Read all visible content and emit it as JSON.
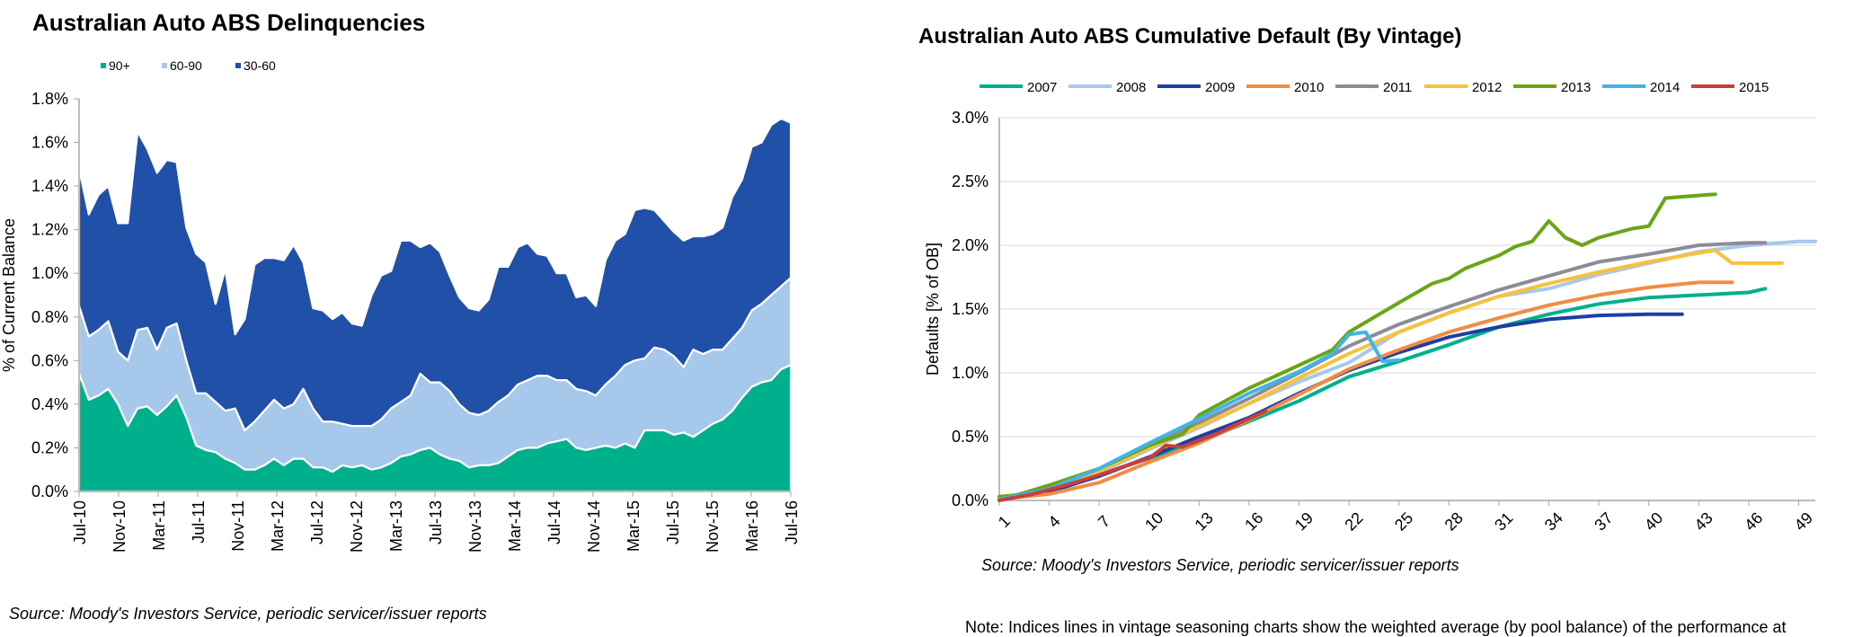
{
  "left_chart": {
    "source": "Source: Moody's Investors Service, periodic servicer/issuer reports"
  },
  "right_chart": {
    "source": "Source: Moody's Investors Service, periodic servicer/issuer reports"
  },
  "note": "Note:  Indices lines in vintage seasoning charts show the weighted average (by pool balance) of the performance at",
  "chart_data": [
    {
      "type": "area",
      "stacked": true,
      "title": "Australian Auto ABS Delinquencies",
      "xlabel": "",
      "ylabel": "% of Current Balance",
      "ylim": [
        0,
        1.8
      ],
      "yticks": [
        "0.0%",
        "0.2%",
        "0.4%",
        "0.6%",
        "0.8%",
        "1.0%",
        "1.2%",
        "1.4%",
        "1.6%",
        "1.8%"
      ],
      "xticks": [
        "Jul-10",
        "Nov-10",
        "Mar-11",
        "Jul-11",
        "Nov-11",
        "Mar-12",
        "Jul-12",
        "Nov-12",
        "Mar-13",
        "Jul-13",
        "Nov-13",
        "Mar-14",
        "Jul-14",
        "Nov-14",
        "Mar-15",
        "Jul-15",
        "Nov-15",
        "Mar-16",
        "Jul-16"
      ],
      "x_start": "Jul-10",
      "x_end": "Jul-16",
      "grid": false,
      "legend_position": "top-left",
      "series": [
        {
          "name": "90+",
          "color": "#00b08c",
          "values": [
            0.54,
            0.42,
            0.44,
            0.47,
            0.4,
            0.3,
            0.38,
            0.39,
            0.35,
            0.39,
            0.44,
            0.34,
            0.21,
            0.19,
            0.18,
            0.15,
            0.13,
            0.1,
            0.1,
            0.12,
            0.15,
            0.12,
            0.15,
            0.15,
            0.11,
            0.11,
            0.09,
            0.12,
            0.11,
            0.12,
            0.1,
            0.11,
            0.13,
            0.16,
            0.17,
            0.19,
            0.2,
            0.17,
            0.15,
            0.14,
            0.11,
            0.12,
            0.12,
            0.13,
            0.16,
            0.19,
            0.2,
            0.2,
            0.22,
            0.23,
            0.24,
            0.2,
            0.19,
            0.2,
            0.21,
            0.2,
            0.22,
            0.2,
            0.28,
            0.28,
            0.28,
            0.26,
            0.27,
            0.25,
            0.28,
            0.31,
            0.33,
            0.37,
            0.43,
            0.48,
            0.5,
            0.51,
            0.56,
            0.58
          ]
        },
        {
          "name": "60-90",
          "color": "#a6c8ea",
          "values": [
            0.31,
            0.29,
            0.3,
            0.31,
            0.24,
            0.3,
            0.36,
            0.36,
            0.3,
            0.36,
            0.33,
            0.26,
            0.24,
            0.26,
            0.23,
            0.22,
            0.25,
            0.18,
            0.22,
            0.25,
            0.27,
            0.26,
            0.25,
            0.32,
            0.27,
            0.21,
            0.23,
            0.19,
            0.19,
            0.18,
            0.2,
            0.22,
            0.25,
            0.25,
            0.27,
            0.35,
            0.3,
            0.33,
            0.31,
            0.26,
            0.25,
            0.23,
            0.25,
            0.28,
            0.28,
            0.3,
            0.31,
            0.33,
            0.31,
            0.28,
            0.27,
            0.27,
            0.27,
            0.24,
            0.28,
            0.33,
            0.36,
            0.4,
            0.33,
            0.38,
            0.37,
            0.36,
            0.3,
            0.4,
            0.35,
            0.34,
            0.32,
            0.33,
            0.32,
            0.35,
            0.36,
            0.39,
            0.38,
            0.4
          ]
        },
        {
          "name": "30-60",
          "color": "#2050a8",
          "values": [
            0.63,
            0.56,
            0.62,
            0.62,
            0.59,
            0.63,
            0.91,
            0.82,
            0.81,
            0.77,
            0.74,
            0.61,
            0.64,
            0.6,
            0.45,
            0.65,
            0.34,
            0.51,
            0.72,
            0.7,
            0.65,
            0.68,
            0.73,
            0.58,
            0.46,
            0.51,
            0.47,
            0.51,
            0.47,
            0.46,
            0.6,
            0.66,
            0.63,
            0.74,
            0.71,
            0.58,
            0.64,
            0.6,
            0.53,
            0.49,
            0.48,
            0.48,
            0.51,
            0.62,
            0.59,
            0.63,
            0.63,
            0.56,
            0.55,
            0.49,
            0.49,
            0.42,
            0.44,
            0.41,
            0.57,
            0.62,
            0.6,
            0.69,
            0.69,
            0.63,
            0.59,
            0.57,
            0.58,
            0.52,
            0.54,
            0.53,
            0.56,
            0.65,
            0.68,
            0.75,
            0.74,
            0.78,
            0.77,
            0.71
          ]
        }
      ]
    },
    {
      "type": "line",
      "title": "Australian Auto ABS Cumulative Default (By Vintage)",
      "xlabel": "",
      "ylabel": "Defaults [% of OB]",
      "xlim": [
        1,
        50
      ],
      "ylim": [
        0,
        3.0
      ],
      "xticks": [
        1,
        4,
        7,
        10,
        13,
        16,
        19,
        22,
        25,
        28,
        31,
        34,
        37,
        40,
        43,
        46,
        49
      ],
      "yticks": [
        "0.0%",
        "0.5%",
        "1.0%",
        "1.5%",
        "2.0%",
        "2.5%",
        "3.0%"
      ],
      "grid": true,
      "legend_position": "top",
      "series": [
        {
          "name": "2007",
          "color": "#00b08c",
          "points": [
            [
              1,
              0.02
            ],
            [
              4,
              0.06
            ],
            [
              7,
              0.2
            ],
            [
              10,
              0.33
            ],
            [
              13,
              0.46
            ],
            [
              16,
              0.62
            ],
            [
              19,
              0.78
            ],
            [
              22,
              0.97
            ],
            [
              25,
              1.09
            ],
            [
              28,
              1.22
            ],
            [
              31,
              1.36
            ],
            [
              34,
              1.46
            ],
            [
              37,
              1.54
            ],
            [
              40,
              1.59
            ],
            [
              43,
              1.61
            ],
            [
              46,
              1.63
            ],
            [
              47,
              1.66
            ]
          ]
        },
        {
          "name": "2008",
          "color": "#a6c8ea",
          "points": [
            [
              1,
              0.02
            ],
            [
              4,
              0.08
            ],
            [
              7,
              0.22
            ],
            [
              10,
              0.4
            ],
            [
              13,
              0.57
            ],
            [
              16,
              0.76
            ],
            [
              19,
              0.93
            ],
            [
              22,
              1.08
            ],
            [
              25,
              1.32
            ],
            [
              28,
              1.47
            ],
            [
              31,
              1.6
            ],
            [
              34,
              1.66
            ],
            [
              37,
              1.77
            ],
            [
              40,
              1.86
            ],
            [
              43,
              1.95
            ],
            [
              46,
              2.0
            ],
            [
              49,
              2.03
            ],
            [
              50,
              2.03
            ]
          ]
        },
        {
          "name": "2009",
          "color": "#1f3ea5",
          "points": [
            [
              1,
              0.02
            ],
            [
              4,
              0.07
            ],
            [
              7,
              0.19
            ],
            [
              10,
              0.34
            ],
            [
              13,
              0.5
            ],
            [
              16,
              0.65
            ],
            [
              19,
              0.84
            ],
            [
              22,
              1.02
            ],
            [
              25,
              1.16
            ],
            [
              28,
              1.28
            ],
            [
              31,
              1.36
            ],
            [
              34,
              1.42
            ],
            [
              37,
              1.45
            ],
            [
              40,
              1.46
            ],
            [
              42,
              1.46
            ]
          ]
        },
        {
          "name": "2010",
          "color": "#f08c44",
          "points": [
            [
              1,
              0.01
            ],
            [
              4,
              0.05
            ],
            [
              7,
              0.14
            ],
            [
              10,
              0.3
            ],
            [
              13,
              0.45
            ],
            [
              16,
              0.63
            ],
            [
              19,
              0.83
            ],
            [
              22,
              1.03
            ],
            [
              25,
              1.18
            ],
            [
              28,
              1.32
            ],
            [
              31,
              1.43
            ],
            [
              34,
              1.53
            ],
            [
              37,
              1.61
            ],
            [
              40,
              1.67
            ],
            [
              43,
              1.71
            ],
            [
              45,
              1.71
            ]
          ]
        },
        {
          "name": "2011",
          "color": "#8c8c98",
          "points": [
            [
              1,
              0.02
            ],
            [
              4,
              0.09
            ],
            [
              7,
              0.24
            ],
            [
              10,
              0.42
            ],
            [
              13,
              0.61
            ],
            [
              16,
              0.8
            ],
            [
              19,
              1.0
            ],
            [
              22,
              1.21
            ],
            [
              25,
              1.38
            ],
            [
              28,
              1.52
            ],
            [
              31,
              1.65
            ],
            [
              34,
              1.76
            ],
            [
              37,
              1.87
            ],
            [
              40,
              1.93
            ],
            [
              43,
              2.0
            ],
            [
              46,
              2.02
            ],
            [
              47,
              2.02
            ]
          ]
        },
        {
          "name": "2012",
          "color": "#f6c23a",
          "points": [
            [
              1,
              0.02
            ],
            [
              4,
              0.09
            ],
            [
              7,
              0.23
            ],
            [
              10,
              0.41
            ],
            [
              13,
              0.58
            ],
            [
              16,
              0.76
            ],
            [
              19,
              0.96
            ],
            [
              22,
              1.15
            ],
            [
              25,
              1.32
            ],
            [
              28,
              1.47
            ],
            [
              31,
              1.6
            ],
            [
              34,
              1.7
            ],
            [
              37,
              1.79
            ],
            [
              40,
              1.87
            ],
            [
              43,
              1.94
            ],
            [
              44,
              1.96
            ],
            [
              45,
              1.86
            ],
            [
              46,
              1.86
            ],
            [
              48,
              1.86
            ]
          ]
        },
        {
          "name": "2013",
          "color": "#6aa517",
          "points": [
            [
              1,
              0.03
            ],
            [
              2,
              0.04
            ],
            [
              4,
              0.12
            ],
            [
              7,
              0.25
            ],
            [
              10,
              0.43
            ],
            [
              12,
              0.52
            ],
            [
              13,
              0.67
            ],
            [
              16,
              0.88
            ],
            [
              19,
              1.06
            ],
            [
              21,
              1.18
            ],
            [
              22,
              1.32
            ],
            [
              25,
              1.55
            ],
            [
              27,
              1.7
            ],
            [
              28,
              1.74
            ],
            [
              29,
              1.82
            ],
            [
              31,
              1.92
            ],
            [
              32,
              1.99
            ],
            [
              33,
              2.03
            ],
            [
              34,
              2.19
            ],
            [
              35,
              2.06
            ],
            [
              36,
              2.0
            ],
            [
              37,
              2.06
            ],
            [
              39,
              2.13
            ],
            [
              40,
              2.15
            ],
            [
              41,
              2.37
            ],
            [
              42,
              2.38
            ],
            [
              44,
              2.4
            ]
          ]
        },
        {
          "name": "2014",
          "color": "#40b4e8",
          "points": [
            [
              1,
              0.01
            ],
            [
              4,
              0.09
            ],
            [
              7,
              0.25
            ],
            [
              10,
              0.45
            ],
            [
              13,
              0.64
            ],
            [
              16,
              0.84
            ],
            [
              19,
              1.01
            ],
            [
              21,
              1.15
            ],
            [
              22,
              1.3
            ],
            [
              23,
              1.32
            ],
            [
              24,
              1.09
            ],
            [
              25,
              1.1
            ]
          ]
        },
        {
          "name": "2015",
          "color": "#c8403a",
          "points": [
            [
              1,
              0.0
            ],
            [
              3,
              0.05
            ],
            [
              5,
              0.12
            ],
            [
              7,
              0.2
            ],
            [
              9,
              0.29
            ],
            [
              10,
              0.33
            ],
            [
              11,
              0.43
            ],
            [
              12,
              0.42
            ],
            [
              14,
              0.52
            ],
            [
              16,
              0.64
            ],
            [
              17,
              0.7
            ]
          ]
        }
      ]
    }
  ]
}
